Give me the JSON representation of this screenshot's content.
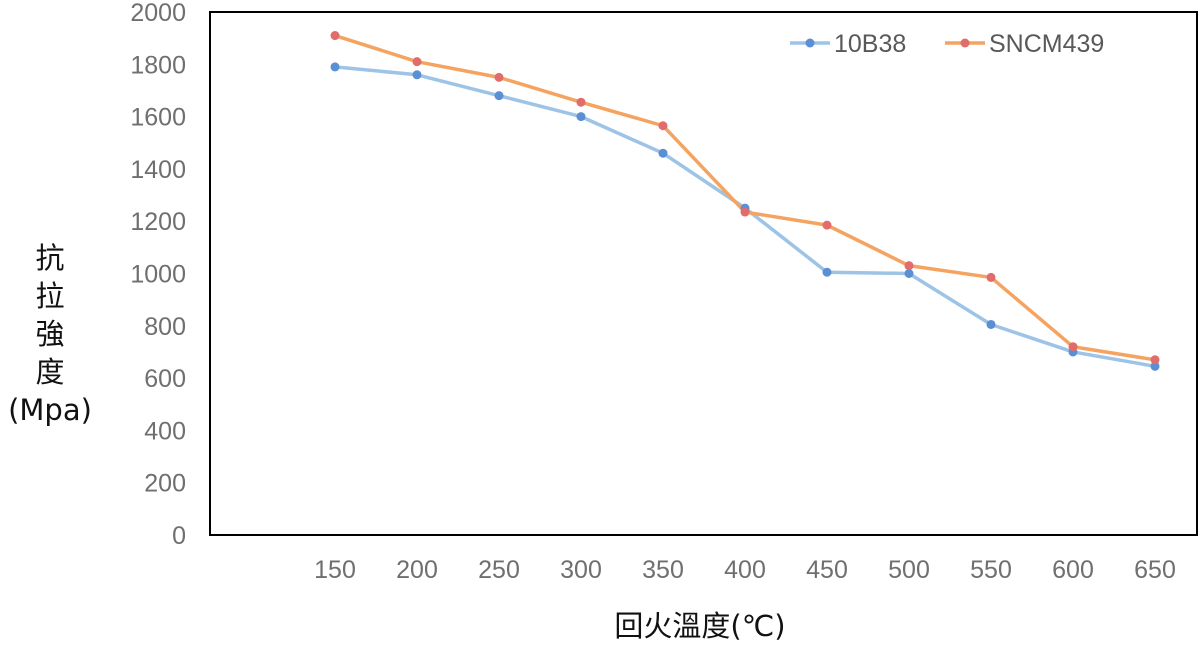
{
  "chart_data": {
    "type": "line",
    "title": "",
    "xlabel": "回火溫度(℃)",
    "ylabel_lines": [
      "抗",
      "拉",
      "強",
      "度",
      "(Mpa)"
    ],
    "categories": [
      "150",
      "200",
      "250",
      "300",
      "350",
      "400",
      "450",
      "500",
      "550",
      "600",
      "650"
    ],
    "ylim": [
      0,
      2000
    ],
    "yticks": [
      "0",
      "200",
      "400",
      "600",
      "800",
      "1000",
      "1200",
      "1400",
      "1600",
      "1800",
      "2000"
    ],
    "grid": false,
    "legend_position": "top-right",
    "series": [
      {
        "name": "10B38",
        "color": "#9dc3e6",
        "marker_color": "#5b8fd4",
        "values": [
          1790,
          1760,
          1680,
          1600,
          1460,
          1250,
          1005,
          1000,
          805,
          700,
          645
        ]
      },
      {
        "name": "SNCM439",
        "color": "#f4a460",
        "marker_color": "#e06c6c",
        "values": [
          1910,
          1810,
          1750,
          1655,
          1565,
          1235,
          1185,
          1030,
          985,
          720,
          670
        ]
      }
    ]
  }
}
